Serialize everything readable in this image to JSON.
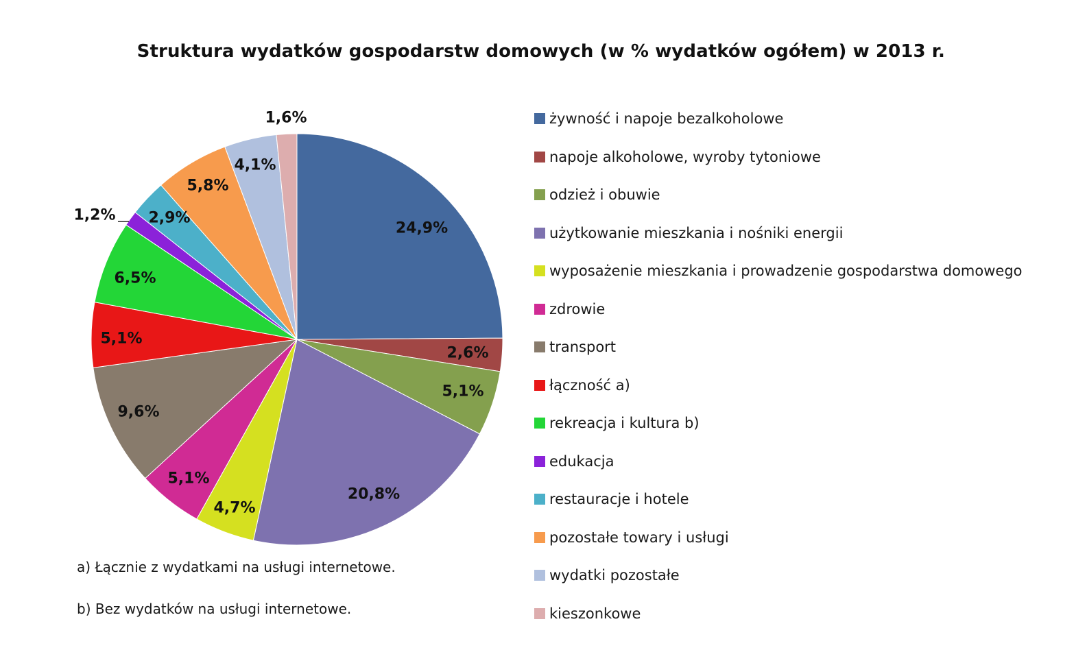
{
  "chart_data": {
    "type": "pie",
    "title": "Struktura wydatków gospodarstw domowych (w % wydatków ogółem) w 2013 r.",
    "slices": [
      {
        "name": "żywność i napoje bezalkoholowe",
        "value": 24.9,
        "label": "24,9%",
        "color": "#44699E"
      },
      {
        "name": "napoje alkoholowe, wyroby tytoniowe",
        "value": 2.6,
        "label": "2,6%",
        "color": "#A14745"
      },
      {
        "name": "odzież i obuwie",
        "value": 5.1,
        "label": "5,1%",
        "color": "#84A04E"
      },
      {
        "name": "użytkowanie mieszkania i nośniki energii",
        "value": 20.8,
        "label": "20,8%",
        "color": "#7E72AF"
      },
      {
        "name": "wyposażenie mieszkania i prowadzenie gospodarstwa domowego",
        "value": 4.7,
        "label": "4,7%",
        "color": "#D5E020"
      },
      {
        "name": "zdrowie",
        "value": 5.1,
        "label": "5,1%",
        "color": "#D02B94"
      },
      {
        "name": "transport",
        "value": 9.6,
        "label": "9,6%",
        "color": "#887B6C"
      },
      {
        "name": "łączność a)",
        "value": 5.1,
        "label": "5,1%",
        "color": "#E81717"
      },
      {
        "name": "rekreacja i kultura b)",
        "value": 6.5,
        "label": "6,5%",
        "color": "#23D637"
      },
      {
        "name": "edukacja",
        "value": 1.2,
        "label": "1,2%",
        "color": "#8B22D9"
      },
      {
        "name": "restauracje i hotele",
        "value": 2.9,
        "label": "2,9%",
        "color": "#4CB0C9"
      },
      {
        "name": "pozostałe towary i usługi",
        "value": 5.8,
        "label": "5,8%",
        "color": "#F79B4D"
      },
      {
        "name": "wydatki pozostałe",
        "value": 4.1,
        "label": "4,1%",
        "color": "#B0C0DE"
      },
      {
        "name": "kieszonkowe",
        "value": 1.6,
        "label": "1,6%",
        "color": "#DDADAE"
      }
    ],
    "legend_position": "right"
  },
  "footnotes": {
    "a": "a) Łącznie z wydatkami na usługi internetowe.",
    "b": "b) Bez wydatków na usługi internetowe."
  }
}
